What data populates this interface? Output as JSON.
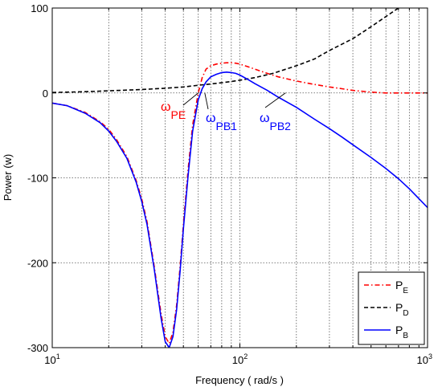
{
  "chart_data": {
    "type": "line",
    "title": "",
    "xlabel": "Frequency ( rad/s )",
    "ylabel": "Power (w)",
    "x_scale": "log",
    "xlim": [
      10,
      1000
    ],
    "ylim": [
      -300,
      100
    ],
    "grid": true,
    "x_ticks": [
      {
        "value": 10,
        "base": "10",
        "exp": "1"
      },
      {
        "value": 100,
        "base": "10",
        "exp": "2"
      },
      {
        "value": 1000,
        "base": "10",
        "exp": "3"
      }
    ],
    "y_ticks": [
      {
        "value": 100,
        "label": "100"
      },
      {
        "value": 0,
        "label": "0"
      },
      {
        "value": -100,
        "label": "-100"
      },
      {
        "value": -200,
        "label": "-200"
      },
      {
        "value": -300,
        "label": "-300"
      }
    ],
    "legend": {
      "position": "bottom-right",
      "entries": [
        {
          "series": "P_E",
          "base": "P",
          "sub": "E"
        },
        {
          "series": "P_D",
          "base": "P",
          "sub": "D"
        },
        {
          "series": "P_B",
          "base": "P",
          "sub": "B"
        }
      ]
    },
    "series": [
      {
        "name": "P_E",
        "color": "#ff0000",
        "style": "dash-dot",
        "x": [
          10,
          12,
          15,
          18,
          20,
          22,
          25,
          28,
          30,
          32,
          35,
          38,
          40,
          42,
          44,
          46,
          48,
          50,
          53,
          56,
          60,
          63,
          66,
          70,
          75,
          80,
          85,
          90,
          95,
          100,
          110,
          120,
          140,
          160,
          200,
          250,
          300,
          350,
          400,
          500,
          600,
          700,
          800,
          1000
        ],
        "y": [
          -12,
          -15,
          -23,
          -34,
          -43,
          -55,
          -75,
          -103,
          -125,
          -152,
          -205,
          -260,
          -287,
          -295,
          -282,
          -250,
          -205,
          -155,
          -90,
          -38,
          0,
          18,
          28,
          32,
          34,
          35,
          35.5,
          35.5,
          35,
          34,
          31,
          28,
          23,
          19,
          14,
          10,
          7,
          5,
          3,
          1,
          0,
          0,
          0,
          0
        ]
      },
      {
        "name": "P_D",
        "color": "#000000",
        "style": "dashed",
        "x": [
          10,
          15,
          20,
          30,
          40,
          50,
          60,
          70,
          80,
          90,
          100,
          120,
          150,
          200,
          250,
          300,
          400,
          500,
          600,
          700
        ],
        "y": [
          0.5,
          1.5,
          2.5,
          4,
          5.5,
          7,
          9,
          10.5,
          12,
          13.5,
          15,
          18,
          23,
          32,
          40,
          50,
          64,
          78,
          90,
          100
        ]
      },
      {
        "name": "P_B",
        "color": "#0000ff",
        "style": "solid",
        "x": [
          10,
          12,
          15,
          18,
          20,
          22,
          25,
          28,
          30,
          32,
          35,
          38,
          40,
          42,
          44,
          46,
          48,
          50,
          53,
          56,
          60,
          63,
          66,
          70,
          75,
          80,
          85,
          90,
          95,
          100,
          110,
          120,
          140,
          160,
          200,
          250,
          300,
          350,
          400,
          500,
          600,
          700,
          800,
          1000
        ],
        "y": [
          -12,
          -15,
          -24,
          -35,
          -45,
          -57,
          -77,
          -105,
          -128,
          -155,
          -208,
          -265,
          -293,
          -300,
          -287,
          -255,
          -210,
          -160,
          -97,
          -45,
          -8,
          5,
          13,
          19,
          22,
          24,
          24.5,
          24,
          23,
          21,
          16,
          11,
          3,
          -5,
          -17,
          -31,
          -42,
          -52,
          -61,
          -76,
          -89,
          -101,
          -113,
          -135
        ]
      }
    ],
    "annotations": [
      {
        "id": "omega-pe",
        "symbol": "ω",
        "sub": "PE",
        "color": "#ff0000",
        "x": 60,
        "y": 0
      },
      {
        "id": "omega-pb1",
        "symbol": "ω",
        "sub": "PB1",
        "color": "#0000ff",
        "x": 65,
        "y": 0
      },
      {
        "id": "omega-pb2",
        "symbol": "ω",
        "sub": "PB2",
        "color": "#0000ff",
        "x": 175,
        "y": 0
      }
    ]
  }
}
